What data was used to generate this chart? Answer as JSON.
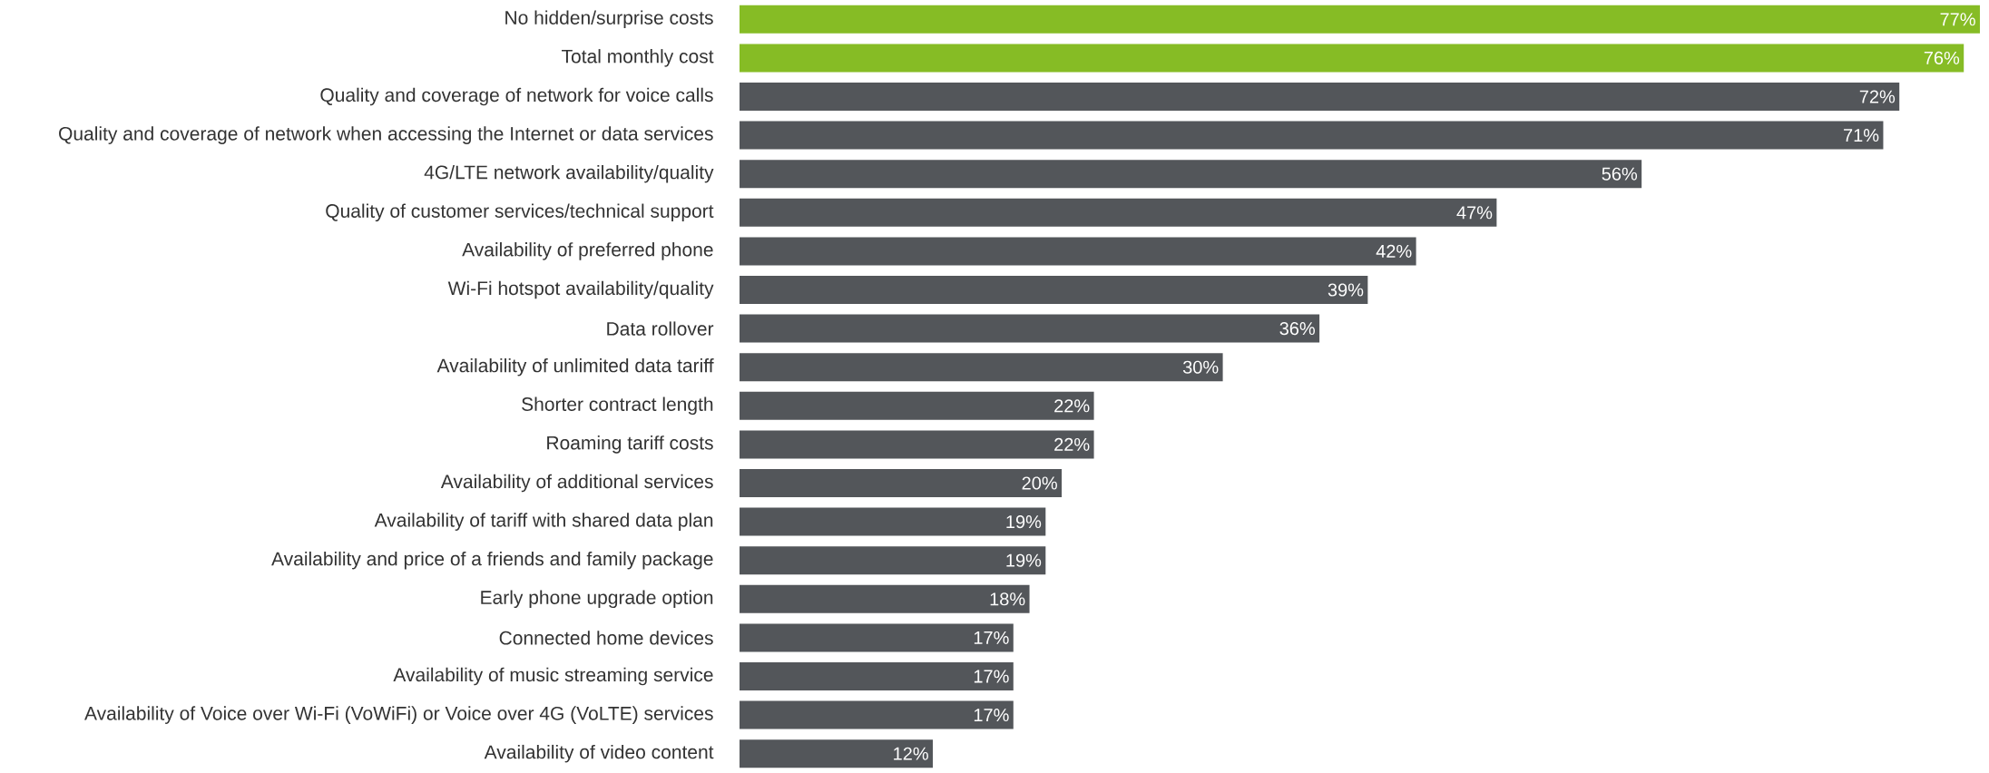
{
  "chart_data": {
    "type": "bar",
    "orientation": "horizontal",
    "categories": [
      "No hidden/surprise costs",
      "Total monthly cost",
      "Quality and coverage of network for voice calls",
      "Quality and coverage of network when accessing the Internet or data services",
      "4G/LTE network availability/quality",
      "Quality of customer services/technical support",
      "Availability of preferred phone",
      "Wi-Fi hotspot availability/quality",
      "Data rollover",
      "Availability of unlimited data tariff",
      "Shorter contract length",
      "Roaming tariff costs",
      "Availability of additional services",
      "Availability of tariff with shared data plan",
      "Availability and price of a friends and family package",
      "Early phone upgrade option",
      "Connected home devices",
      "Availability of music streaming service",
      "Availability of Voice over Wi-Fi (VoWiFi) or Voice over 4G (VoLTE) services",
      "Availability of video content"
    ],
    "values": [
      77,
      76,
      72,
      71,
      56,
      47,
      42,
      39,
      36,
      30,
      22,
      22,
      20,
      19,
      19,
      18,
      17,
      17,
      17,
      12
    ],
    "value_labels": [
      "77%",
      "76%",
      "72%",
      "71%",
      "56%",
      "47%",
      "42%",
      "39%",
      "36%",
      "30%",
      "22%",
      "22%",
      "20%",
      "19%",
      "19%",
      "18%",
      "17%",
      "17%",
      "17%",
      "12%"
    ],
    "colors": [
      "#86bc25",
      "#86bc25",
      "#53565a",
      "#53565a",
      "#53565a",
      "#53565a",
      "#53565a",
      "#53565a",
      "#53565a",
      "#53565a",
      "#53565a",
      "#53565a",
      "#53565a",
      "#53565a",
      "#53565a",
      "#53565a",
      "#53565a",
      "#53565a",
      "#53565a",
      "#53565a"
    ]
  }
}
